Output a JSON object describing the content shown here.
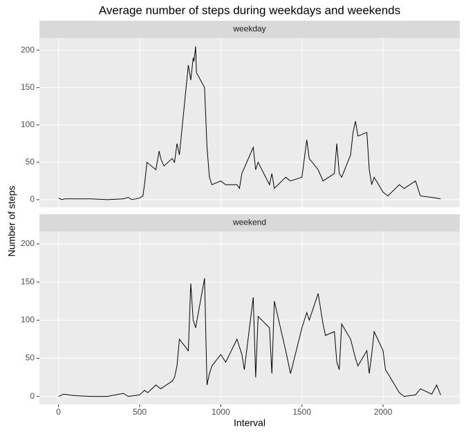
{
  "title": "Average number of steps during weekdays and weekends",
  "x_label": "Interval",
  "y_label": "Number of steps",
  "chart_data": [
    {
      "type": "line",
      "facet": "weekday",
      "grid": true,
      "x": [
        0,
        20,
        40,
        100,
        200,
        300,
        400,
        430,
        450,
        500,
        520,
        530,
        545,
        600,
        620,
        630,
        650,
        700,
        715,
        730,
        745,
        800,
        815,
        830,
        835,
        845,
        850,
        900,
        915,
        930,
        945,
        1000,
        1030,
        1100,
        1115,
        1130,
        1200,
        1215,
        1230,
        1300,
        1315,
        1330,
        1400,
        1430,
        1500,
        1530,
        1545,
        1600,
        1630,
        1700,
        1715,
        1730,
        1745,
        1800,
        1815,
        1830,
        1845,
        1900,
        1915,
        1930,
        1945,
        2000,
        2030,
        2100,
        2130,
        2200,
        2230,
        2300,
        2330,
        2355
      ],
      "values": [
        2,
        0,
        1,
        1,
        1,
        0,
        1,
        3,
        0,
        2,
        5,
        20,
        50,
        40,
        65,
        55,
        45,
        55,
        50,
        75,
        60,
        180,
        160,
        190,
        185,
        205,
        170,
        150,
        70,
        30,
        20,
        25,
        20,
        20,
        15,
        35,
        70,
        40,
        50,
        20,
        35,
        15,
        30,
        25,
        30,
        80,
        55,
        40,
        25,
        35,
        75,
        35,
        30,
        60,
        90,
        105,
        85,
        90,
        40,
        20,
        30,
        10,
        5,
        20,
        15,
        25,
        5,
        3,
        2,
        1
      ],
      "color": "#000000",
      "xlim": [
        -117.75,
        2472.75
      ],
      "xticks": [
        0,
        500,
        1000,
        1500,
        2000
      ],
      "ylim": [
        -10.3,
        216.3
      ],
      "yticks": [
        0,
        50,
        100,
        150,
        200
      ]
    },
    {
      "type": "line",
      "facet": "weekend",
      "grid": true,
      "x": [
        0,
        30,
        100,
        200,
        300,
        400,
        430,
        500,
        530,
        550,
        600,
        630,
        700,
        715,
        730,
        745,
        800,
        815,
        830,
        845,
        900,
        915,
        930,
        945,
        1000,
        1030,
        1100,
        1130,
        1145,
        1200,
        1215,
        1230,
        1300,
        1315,
        1330,
        1400,
        1430,
        1500,
        1530,
        1545,
        1600,
        1630,
        1645,
        1700,
        1715,
        1730,
        1745,
        1800,
        1830,
        1845,
        1900,
        1915,
        1930,
        1945,
        2000,
        2015,
        2030,
        2100,
        2130,
        2200,
        2230,
        2300,
        2330,
        2355
      ],
      "values": [
        0,
        3,
        1,
        0,
        0,
        4,
        0,
        2,
        8,
        5,
        15,
        10,
        20,
        25,
        40,
        75,
        60,
        148,
        100,
        90,
        155,
        15,
        30,
        40,
        55,
        45,
        75,
        55,
        35,
        130,
        25,
        105,
        90,
        30,
        125,
        60,
        30,
        90,
        110,
        100,
        135,
        95,
        80,
        85,
        45,
        35,
        95,
        75,
        50,
        40,
        60,
        30,
        55,
        85,
        60,
        35,
        30,
        5,
        0,
        2,
        10,
        3,
        15,
        2
      ],
      "color": "#000000",
      "xlim": [
        -117.75,
        2472.75
      ],
      "xticks": [
        0,
        500,
        1000,
        1500,
        2000
      ],
      "ylim": [
        -10.3,
        216.3
      ],
      "yticks": [
        0,
        50,
        100,
        150,
        200
      ]
    }
  ]
}
